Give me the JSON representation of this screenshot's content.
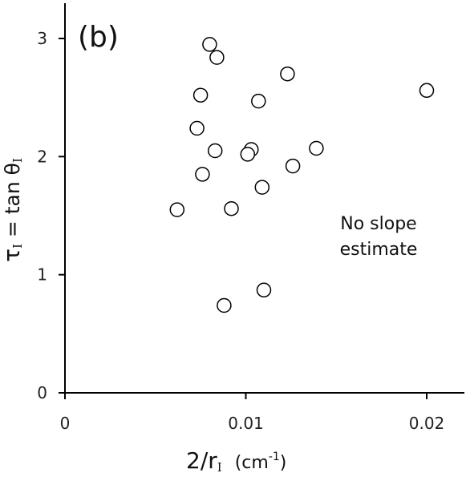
{
  "chart_data": {
    "type": "scatter",
    "panel_label": "(b)",
    "annotation": [
      "No slope",
      "estimate"
    ],
    "xlabel": {
      "main": "2/r",
      "sub": "I",
      "unit_open": "(cm",
      "unit_sup": "-1",
      "unit_close": ")"
    },
    "ylabel": {
      "tau": "τ",
      "tau_sub": "I",
      "eq": " = tan θ",
      "theta_sub": "I"
    },
    "xlim": [
      0,
      0.022
    ],
    "ylim": [
      0,
      3.3
    ],
    "x_ticks": [
      0,
      0.01,
      0.02
    ],
    "x_tick_labels": [
      "0",
      "0.01",
      "0.02"
    ],
    "y_ticks": [
      0,
      1,
      2,
      3
    ],
    "y_tick_labels": [
      "0",
      "1",
      "2",
      "3"
    ],
    "grid": false,
    "marker": "open-circle",
    "points": [
      {
        "x": 0.008,
        "y": 2.95
      },
      {
        "x": 0.0084,
        "y": 2.84
      },
      {
        "x": 0.0123,
        "y": 2.7
      },
      {
        "x": 0.02,
        "y": 2.56
      },
      {
        "x": 0.0075,
        "y": 2.52
      },
      {
        "x": 0.0107,
        "y": 2.47
      },
      {
        "x": 0.0073,
        "y": 2.24
      },
      {
        "x": 0.0139,
        "y": 2.07
      },
      {
        "x": 0.0083,
        "y": 2.05
      },
      {
        "x": 0.0103,
        "y": 2.06
      },
      {
        "x": 0.0101,
        "y": 2.02
      },
      {
        "x": 0.0126,
        "y": 1.92
      },
      {
        "x": 0.0076,
        "y": 1.85
      },
      {
        "x": 0.0109,
        "y": 1.74
      },
      {
        "x": 0.0062,
        "y": 1.55
      },
      {
        "x": 0.0092,
        "y": 1.56
      },
      {
        "x": 0.011,
        "y": 0.87
      },
      {
        "x": 0.0088,
        "y": 0.74
      }
    ]
  }
}
